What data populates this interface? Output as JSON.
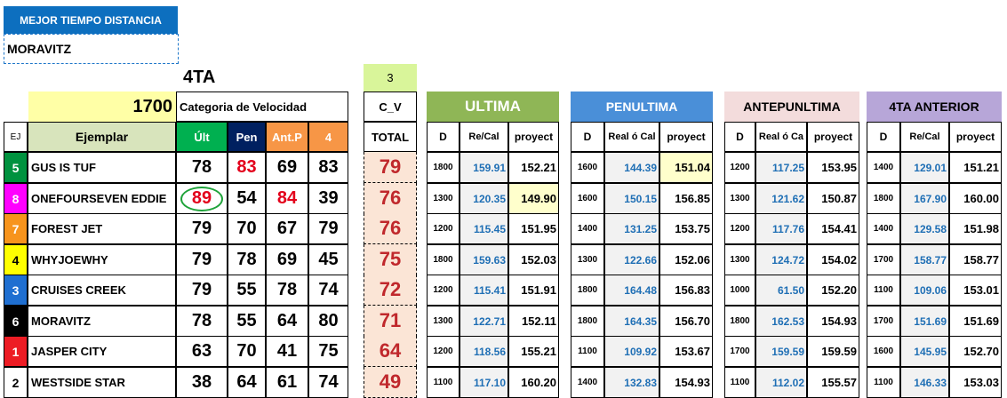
{
  "header": {
    "best_time_label": "MEJOR TIEMPO DISTANCIA",
    "best_time_winner": "MORAVITZ",
    "race_label": "4TA",
    "distance": "1700",
    "speed_category_label": "Categoria de Velocidad",
    "cv_value": "3",
    "cv_label": "C_V",
    "total_label": "TOTAL"
  },
  "columns": {
    "ej": "EJ",
    "ejemplar": "Ejemplar",
    "ult": "Últ",
    "pen": "Pen",
    "antp": "Ant.P",
    "four": "4"
  },
  "sections": [
    {
      "title": "ULTIMA",
      "d": "D",
      "rc": "Re/Cal",
      "proy": "proyect",
      "color": "#8fb656"
    },
    {
      "title": "PENULTIMA",
      "d": "D",
      "rc": "Real ó Cal",
      "proy": "proyect",
      "color": "#4a8fd8"
    },
    {
      "title": "ANTEPUNLTIMA",
      "d": "D",
      "rc": "Real ó Ca",
      "proy": "proyect",
      "color": "#f3dcdc"
    },
    {
      "title": "4TA ANTERIOR",
      "d": "D",
      "rc": "Re/Cal",
      "proy": "proyect",
      "color": "#b7a6d8"
    }
  ],
  "rows": [
    {
      "num": "5",
      "color": "#00923f",
      "name": "GUS IS TUF",
      "ult": "78",
      "pen": "83",
      "antp": "69",
      "four": "83",
      "total": "79",
      "s": [
        [
          "1800",
          "159.91",
          "152.21"
        ],
        [
          "1600",
          "144.39",
          "151.04"
        ],
        [
          "1200",
          "117.25",
          "153.95"
        ],
        [
          "1400",
          "129.01",
          "151.21"
        ]
      ]
    },
    {
      "num": "8",
      "color": "#ff00ff",
      "name": "ONEFOURSEVEN EDDIE",
      "ult": "89",
      "pen": "54",
      "antp": "84",
      "four": "39",
      "total": "76",
      "s": [
        [
          "1300",
          "120.35",
          "149.90"
        ],
        [
          "1600",
          "150.15",
          "156.85"
        ],
        [
          "1300",
          "121.62",
          "150.87"
        ],
        [
          "1800",
          "167.90",
          "160.00"
        ]
      ]
    },
    {
      "num": "7",
      "color": "#f7941d",
      "name": "FOREST JET",
      "ult": "79",
      "pen": "70",
      "antp": "67",
      "four": "79",
      "total": "76",
      "s": [
        [
          "1200",
          "115.45",
          "151.95"
        ],
        [
          "1400",
          "131.25",
          "153.75"
        ],
        [
          "1200",
          "117.76",
          "154.41"
        ],
        [
          "1400",
          "129.58",
          "151.98"
        ]
      ]
    },
    {
      "num": "4",
      "color": "#ffff00",
      "name": "WHYJOEWHY",
      "ult": "79",
      "pen": "78",
      "antp": "69",
      "four": "45",
      "total": "75",
      "s": [
        [
          "1800",
          "159.63",
          "152.03"
        ],
        [
          "1300",
          "122.66",
          "152.06"
        ],
        [
          "1300",
          "124.72",
          "154.02"
        ],
        [
          "1700",
          "158.77",
          "158.77"
        ]
      ]
    },
    {
      "num": "3",
      "color": "#1f6fd1",
      "name": "CRUISES CREEK",
      "ult": "79",
      "pen": "55",
      "antp": "78",
      "four": "74",
      "total": "72",
      "s": [
        [
          "1200",
          "115.41",
          "151.91"
        ],
        [
          "1800",
          "164.48",
          "156.83"
        ],
        [
          "1000",
          "61.50",
          "152.20"
        ],
        [
          "1100",
          "109.06",
          "153.01"
        ]
      ]
    },
    {
      "num": "6",
      "color": "#000000",
      "name": "MORAVITZ",
      "ult": "78",
      "pen": "55",
      "antp": "64",
      "four": "80",
      "total": "71",
      "s": [
        [
          "1300",
          "122.71",
          "152.11"
        ],
        [
          "1800",
          "164.35",
          "156.70"
        ],
        [
          "1800",
          "162.53",
          "154.93"
        ],
        [
          "1700",
          "151.69",
          "151.69"
        ]
      ]
    },
    {
      "num": "1",
      "color": "#ed1c24",
      "name": "JASPER CITY",
      "ult": "63",
      "pen": "70",
      "antp": "41",
      "four": "75",
      "total": "64",
      "s": [
        [
          "1200",
          "118.56",
          "155.21"
        ],
        [
          "1100",
          "109.92",
          "153.67"
        ],
        [
          "1700",
          "159.59",
          "159.59"
        ],
        [
          "1600",
          "145.95",
          "152.70"
        ]
      ]
    },
    {
      "num": "2",
      "color": "#ffffff",
      "name": "WESTSIDE STAR",
      "ult": "38",
      "pen": "64",
      "antp": "61",
      "four": "74",
      "total": "49",
      "s": [
        [
          "1100",
          "117.10",
          "160.20"
        ],
        [
          "1400",
          "132.83",
          "154.93"
        ],
        [
          "1100",
          "112.02",
          "155.57"
        ],
        [
          "1100",
          "146.33",
          "153.03"
        ]
      ]
    }
  ]
}
